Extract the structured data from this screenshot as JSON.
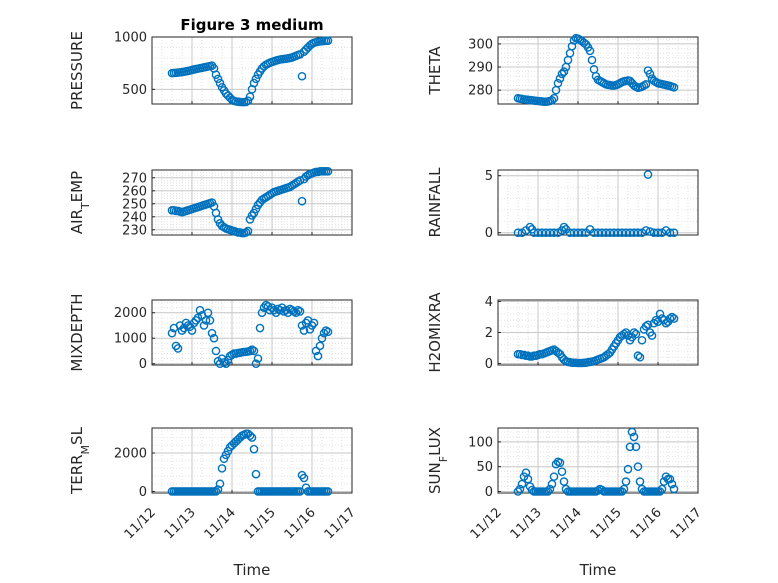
{
  "figure_title": "Figure 3 medium",
  "colors": {
    "marker": "#0072BD",
    "axis": "#262626",
    "grid": "#c8c8c8",
    "minor_grid": "#e2e2e2"
  },
  "chart_data": [
    {
      "type": "scatter",
      "ylabel": "PRESSURE",
      "ylim": [
        360,
        1000
      ],
      "yticks": [
        500,
        1000
      ],
      "xlim": [
        0,
        5
      ],
      "x": [
        0.5,
        0.55,
        0.6,
        0.65,
        0.7,
        0.75,
        0.8,
        0.85,
        0.9,
        0.95,
        1.0,
        1.05,
        1.1,
        1.15,
        1.2,
        1.25,
        1.3,
        1.35,
        1.4,
        1.45,
        1.5,
        1.55,
        1.6,
        1.65,
        1.7,
        1.75,
        1.8,
        1.85,
        1.9,
        1.95,
        2.0,
        2.05,
        2.1,
        2.15,
        2.2,
        2.25,
        2.3,
        2.35,
        2.4,
        2.45,
        2.5,
        2.55,
        2.6,
        2.65,
        2.7,
        2.75,
        2.8,
        2.85,
        2.9,
        2.95,
        3.0,
        3.05,
        3.1,
        3.15,
        3.2,
        3.25,
        3.3,
        3.35,
        3.4,
        3.45,
        3.5,
        3.55,
        3.6,
        3.65,
        3.7,
        3.75,
        3.8,
        3.85,
        3.9,
        3.95,
        4.0,
        4.05,
        4.1,
        4.15,
        4.2,
        4.25,
        4.3,
        4.35,
        4.4
      ],
      "y": [
        655,
        656,
        658,
        660,
        662,
        665,
        668,
        672,
        676,
        680,
        685,
        690,
        694,
        698,
        702,
        706,
        710,
        714,
        718,
        722,
        726,
        700,
        640,
        600,
        560,
        520,
        490,
        460,
        440,
        420,
        400,
        390,
        385,
        382,
        380,
        378,
        378,
        380,
        392,
        430,
        500,
        560,
        600,
        640,
        670,
        700,
        720,
        735,
        745,
        755,
        762,
        768,
        775,
        780,
        785,
        788,
        790,
        793,
        796,
        800,
        805,
        812,
        820,
        828,
        835,
        625,
        860,
        880,
        900,
        920,
        935,
        945,
        950,
        955,
        958,
        960,
        962,
        963,
        965
      ]
    },
    {
      "type": "scatter",
      "ylabel": "THETA",
      "ylim": [
        274,
        303
      ],
      "yticks": [
        280,
        290,
        300
      ],
      "xlim": [
        0,
        5
      ],
      "x": [
        0.5,
        0.55,
        0.6,
        0.65,
        0.7,
        0.75,
        0.8,
        0.85,
        0.9,
        0.95,
        1.0,
        1.05,
        1.1,
        1.15,
        1.2,
        1.25,
        1.3,
        1.35,
        1.4,
        1.45,
        1.5,
        1.55,
        1.6,
        1.65,
        1.7,
        1.75,
        1.8,
        1.85,
        1.9,
        1.95,
        2.0,
        2.05,
        2.1,
        2.15,
        2.2,
        2.25,
        2.3,
        2.35,
        2.4,
        2.45,
        2.5,
        2.55,
        2.6,
        2.65,
        2.7,
        2.75,
        2.8,
        2.85,
        2.9,
        2.95,
        3.0,
        3.05,
        3.1,
        3.15,
        3.2,
        3.25,
        3.3,
        3.35,
        3.4,
        3.45,
        3.5,
        3.55,
        3.6,
        3.65,
        3.7,
        3.75,
        3.8,
        3.85,
        3.9,
        3.95,
        4.0,
        4.05,
        4.1,
        4.15,
        4.2,
        4.25,
        4.3,
        4.35,
        4.4
      ],
      "y": [
        276.5,
        276.3,
        276.2,
        276.0,
        275.9,
        275.8,
        275.7,
        275.6,
        275.5,
        275.4,
        275.3,
        275.2,
        275.1,
        275.0,
        275.0,
        275.1,
        275.3,
        275.6,
        276.5,
        280,
        283,
        285,
        287,
        288,
        290,
        293,
        296,
        299,
        301.5,
        302.5,
        302.3,
        301.8,
        301.2,
        300.5,
        299.8,
        298.5,
        297,
        293,
        289,
        286,
        284.5,
        284,
        283.5,
        283,
        282.5,
        282.3,
        282.2,
        282.0,
        282.0,
        282.2,
        282.5,
        283.0,
        283.5,
        283.8,
        284.0,
        284.2,
        284.0,
        283.0,
        282.0,
        281.5,
        281.0,
        281.2,
        281.5,
        282,
        282.5,
        288.5,
        287,
        285,
        284,
        283.5,
        283.0,
        282.8,
        282.6,
        282.4,
        282.2,
        282.0,
        281.8,
        281.5,
        281.2
      ]
    },
    {
      "type": "scatter",
      "ylabel": "AIR_TEMP",
      "ylim": [
        226,
        276
      ],
      "yticks": [
        230,
        240,
        250,
        260,
        270
      ],
      "xlim": [
        0,
        5
      ],
      "x": [
        0.5,
        0.55,
        0.6,
        0.65,
        0.7,
        0.75,
        0.8,
        0.85,
        0.9,
        0.95,
        1.0,
        1.05,
        1.1,
        1.15,
        1.2,
        1.25,
        1.3,
        1.35,
        1.4,
        1.45,
        1.5,
        1.55,
        1.6,
        1.65,
        1.7,
        1.75,
        1.8,
        1.85,
        1.9,
        1.95,
        2.0,
        2.05,
        2.1,
        2.15,
        2.2,
        2.25,
        2.3,
        2.35,
        2.4,
        2.45,
        2.5,
        2.55,
        2.6,
        2.65,
        2.7,
        2.75,
        2.8,
        2.85,
        2.9,
        2.95,
        3.0,
        3.05,
        3.1,
        3.15,
        3.2,
        3.25,
        3.3,
        3.35,
        3.4,
        3.45,
        3.5,
        3.55,
        3.6,
        3.65,
        3.7,
        3.75,
        3.8,
        3.85,
        3.9,
        3.95,
        4.0,
        4.05,
        4.1,
        4.15,
        4.2,
        4.25,
        4.3,
        4.35,
        4.4
      ],
      "y": [
        245,
        245,
        244.5,
        244.5,
        244,
        243.5,
        244,
        244.5,
        245,
        245.5,
        246,
        246.5,
        247,
        247.5,
        248,
        248.5,
        249,
        249.5,
        250,
        250.5,
        251,
        248,
        243,
        238,
        235,
        233,
        232,
        231,
        230.5,
        230,
        229.5,
        229,
        228.5,
        228,
        228,
        227.5,
        227.5,
        228,
        229,
        238,
        241,
        243,
        246,
        249,
        251,
        253,
        254,
        255,
        256,
        257,
        258,
        259,
        259.5,
        260,
        260.5,
        261,
        261.5,
        262,
        262.5,
        263,
        264,
        265,
        266,
        267,
        268,
        252,
        269,
        271,
        272,
        273,
        273.5,
        274,
        274.5,
        274.5,
        275,
        275,
        275,
        275,
        275
      ]
    },
    {
      "type": "scatter",
      "ylabel": "RAINFALL",
      "ylim": [
        -0.2,
        5.5
      ],
      "yticks": [
        0,
        5
      ],
      "xlim": [
        0,
        5
      ],
      "x": [
        0.5,
        0.6,
        0.7,
        0.8,
        0.85,
        0.9,
        1.0,
        1.1,
        1.2,
        1.3,
        1.4,
        1.5,
        1.6,
        1.65,
        1.7,
        1.8,
        1.9,
        2.0,
        2.1,
        2.2,
        2.3,
        2.4,
        2.5,
        2.6,
        2.7,
        2.8,
        2.9,
        3.0,
        3.1,
        3.2,
        3.3,
        3.4,
        3.5,
        3.6,
        3.7,
        3.75,
        3.8,
        3.9,
        4.0,
        4.1,
        4.2,
        4.3,
        4.4
      ],
      "y": [
        0,
        0,
        0.2,
        0.5,
        0.3,
        0,
        0,
        0,
        0,
        0,
        0,
        0,
        0.2,
        0.5,
        0.3,
        0,
        0,
        0,
        0,
        0,
        0.3,
        0,
        0,
        0,
        0,
        0,
        0,
        0,
        0,
        0,
        0,
        0,
        0,
        0,
        0.2,
        5.1,
        0.1,
        0,
        0,
        0,
        0.2,
        0,
        0
      ]
    },
    {
      "type": "scatter",
      "ylabel": "MIXDEPTH",
      "ylim": [
        -50,
        2500
      ],
      "yticks": [
        0,
        1000,
        2000
      ],
      "xlim": [
        0,
        5
      ],
      "x": [
        0.5,
        0.55,
        0.6,
        0.65,
        0.7,
        0.75,
        0.8,
        0.85,
        0.9,
        0.95,
        1.0,
        1.05,
        1.1,
        1.15,
        1.2,
        1.25,
        1.3,
        1.35,
        1.4,
        1.45,
        1.5,
        1.55,
        1.6,
        1.65,
        1.7,
        1.75,
        1.8,
        1.85,
        1.9,
        1.95,
        2.0,
        2.05,
        2.1,
        2.15,
        2.2,
        2.25,
        2.3,
        2.35,
        2.4,
        2.45,
        2.5,
        2.55,
        2.6,
        2.65,
        2.7,
        2.75,
        2.8,
        2.85,
        2.9,
        2.95,
        3.0,
        3.05,
        3.1,
        3.15,
        3.2,
        3.25,
        3.3,
        3.35,
        3.4,
        3.45,
        3.5,
        3.55,
        3.6,
        3.65,
        3.7,
        3.75,
        3.8,
        3.85,
        3.9,
        3.95,
        4.0,
        4.05,
        4.1,
        4.15,
        4.2,
        4.25,
        4.3,
        4.35,
        4.4
      ],
      "y": [
        1200,
        1400,
        700,
        600,
        1500,
        1300,
        1400,
        1600,
        1500,
        1450,
        1300,
        1600,
        1700,
        1800,
        2100,
        1900,
        1500,
        1700,
        2000,
        1700,
        1200,
        1000,
        500,
        100,
        0,
        200,
        50,
        0,
        150,
        300,
        350,
        400,
        400,
        420,
        430,
        450,
        460,
        470,
        480,
        500,
        550,
        500,
        0,
        200,
        1400,
        2000,
        2200,
        2300,
        2250,
        2100,
        2200,
        2100,
        2000,
        2150,
        2100,
        2200,
        2050,
        2100,
        2000,
        2150,
        2100,
        2050,
        2000,
        2100,
        2050,
        1500,
        1300,
        1600,
        1700,
        1350,
        1500,
        1600,
        500,
        300,
        700,
        1000,
        1200,
        1300,
        1250
      ]
    },
    {
      "type": "scatter",
      "ylabel": "H2OMIXRA",
      "ylim": [
        -0.1,
        4.1
      ],
      "yticks": [
        0,
        2,
        4
      ],
      "xlim": [
        0,
        5
      ],
      "x": [
        0.5,
        0.55,
        0.6,
        0.65,
        0.7,
        0.75,
        0.8,
        0.85,
        0.9,
        0.95,
        1.0,
        1.05,
        1.1,
        1.15,
        1.2,
        1.25,
        1.3,
        1.35,
        1.4,
        1.45,
        1.5,
        1.55,
        1.6,
        1.65,
        1.7,
        1.75,
        1.8,
        1.85,
        1.9,
        1.95,
        2.0,
        2.05,
        2.1,
        2.15,
        2.2,
        2.25,
        2.3,
        2.35,
        2.4,
        2.45,
        2.5,
        2.55,
        2.6,
        2.65,
        2.7,
        2.75,
        2.8,
        2.85,
        2.9,
        2.95,
        3.0,
        3.05,
        3.1,
        3.15,
        3.2,
        3.25,
        3.3,
        3.35,
        3.4,
        3.45,
        3.5,
        3.55,
        3.6,
        3.65,
        3.7,
        3.75,
        3.8,
        3.85,
        3.9,
        3.95,
        4.0,
        4.05,
        4.1,
        4.15,
        4.2,
        4.25,
        4.3,
        4.35,
        4.4
      ],
      "y": [
        0.6,
        0.6,
        0.55,
        0.55,
        0.5,
        0.5,
        0.45,
        0.45,
        0.5,
        0.5,
        0.55,
        0.6,
        0.6,
        0.65,
        0.7,
        0.75,
        0.8,
        0.85,
        0.9,
        0.8,
        0.7,
        0.6,
        0.4,
        0.25,
        0.15,
        0.1,
        0.08,
        0.05,
        0.05,
        0.04,
        0.03,
        0.03,
        0.03,
        0.04,
        0.05,
        0.08,
        0.1,
        0.12,
        0.15,
        0.2,
        0.25,
        0.3,
        0.35,
        0.4,
        0.5,
        0.6,
        0.7,
        0.9,
        1.1,
        1.3,
        1.5,
        1.7,
        1.8,
        1.9,
        2.0,
        1.8,
        1.5,
        1.7,
        2.0,
        1.9,
        0.5,
        0.4,
        1.5,
        2.2,
        2.4,
        2.5,
        2.0,
        1.8,
        2.6,
        2.8,
        2.7,
        3.2,
        2.9,
        2.8,
        2.6,
        2.7,
        2.9,
        3.0,
        2.9
      ]
    },
    {
      "type": "scatter",
      "ylabel": "TERR_MSL",
      "ylim": [
        -80,
        3300
      ],
      "yticks": [
        0,
        2000
      ],
      "xlim": [
        0,
        5
      ],
      "x": [
        0.5,
        0.55,
        0.6,
        0.65,
        0.7,
        0.75,
        0.8,
        0.85,
        0.9,
        0.95,
        1.0,
        1.05,
        1.1,
        1.15,
        1.2,
        1.25,
        1.3,
        1.35,
        1.4,
        1.45,
        1.5,
        1.55,
        1.6,
        1.65,
        1.7,
        1.75,
        1.8,
        1.85,
        1.9,
        1.95,
        2.0,
        2.05,
        2.1,
        2.15,
        2.2,
        2.25,
        2.3,
        2.35,
        2.4,
        2.45,
        2.5,
        2.55,
        2.6,
        2.65,
        2.7,
        2.75,
        2.8,
        2.85,
        2.9,
        2.95,
        3.0,
        3.05,
        3.1,
        3.15,
        3.2,
        3.25,
        3.3,
        3.35,
        3.4,
        3.45,
        3.5,
        3.55,
        3.6,
        3.65,
        3.7,
        3.75,
        3.8,
        3.85,
        3.9,
        3.95,
        4.0,
        4.05,
        4.1,
        4.15,
        4.2,
        4.25,
        4.3,
        4.35,
        4.4
      ],
      "y": [
        0,
        0,
        0,
        0,
        0,
        0,
        0,
        0,
        0,
        0,
        0,
        0,
        0,
        0,
        0,
        0,
        0,
        0,
        0,
        0,
        0,
        0,
        0,
        100,
        400,
        1200,
        1700,
        1900,
        2100,
        2300,
        2400,
        2500,
        2600,
        2700,
        2800,
        2900,
        2950,
        3000,
        3000,
        2900,
        2800,
        2200,
        900,
        0,
        0,
        0,
        0,
        0,
        0,
        0,
        0,
        0,
        0,
        0,
        0,
        0,
        0,
        0,
        0,
        0,
        0,
        0,
        0,
        0,
        0,
        850,
        700,
        200,
        0,
        0,
        0,
        0,
        0,
        0,
        0,
        0,
        0,
        0,
        0
      ]
    },
    {
      "type": "scatter",
      "ylabel": "SUN_FLUX",
      "ylim": [
        -3,
        128
      ],
      "yticks": [
        0,
        50,
        100
      ],
      "xlim": [
        0,
        5
      ],
      "x": [
        0.5,
        0.55,
        0.6,
        0.65,
        0.7,
        0.75,
        0.8,
        0.85,
        0.9,
        0.95,
        1.0,
        1.05,
        1.1,
        1.15,
        1.2,
        1.25,
        1.3,
        1.35,
        1.4,
        1.45,
        1.5,
        1.55,
        1.6,
        1.65,
        1.7,
        1.75,
        1.8,
        1.85,
        1.9,
        1.95,
        2.0,
        2.05,
        2.1,
        2.15,
        2.2,
        2.25,
        2.3,
        2.35,
        2.4,
        2.45,
        2.5,
        2.55,
        2.6,
        2.65,
        2.7,
        2.75,
        2.8,
        2.85,
        2.9,
        2.95,
        3.0,
        3.05,
        3.1,
        3.15,
        3.2,
        3.25,
        3.3,
        3.35,
        3.4,
        3.45,
        3.5,
        3.55,
        3.6,
        3.65,
        3.7,
        3.75,
        3.8,
        3.85,
        3.9,
        3.95,
        4.0,
        4.05,
        4.1,
        4.15,
        4.2,
        4.25,
        4.3,
        4.35,
        4.4
      ],
      "y": [
        0,
        5,
        15,
        30,
        38,
        25,
        10,
        3,
        0,
        0,
        0,
        0,
        0,
        0,
        0,
        0,
        5,
        15,
        30,
        55,
        60,
        58,
        40,
        20,
        5,
        0,
        0,
        0,
        0,
        0,
        0,
        0,
        0,
        0,
        0,
        0,
        0,
        0,
        0,
        0,
        2,
        5,
        3,
        0,
        0,
        0,
        0,
        0,
        0,
        0,
        0,
        0,
        0,
        5,
        20,
        45,
        90,
        120,
        110,
        90,
        50,
        20,
        5,
        0,
        0,
        0,
        0,
        0,
        0,
        0,
        0,
        0,
        5,
        20,
        30,
        25,
        25,
        15,
        5
      ]
    }
  ],
  "x_axis": {
    "ticks": [
      "11/12",
      "11/13",
      "11/14",
      "11/15",
      "11/16",
      "11/17"
    ],
    "label": "Time"
  }
}
